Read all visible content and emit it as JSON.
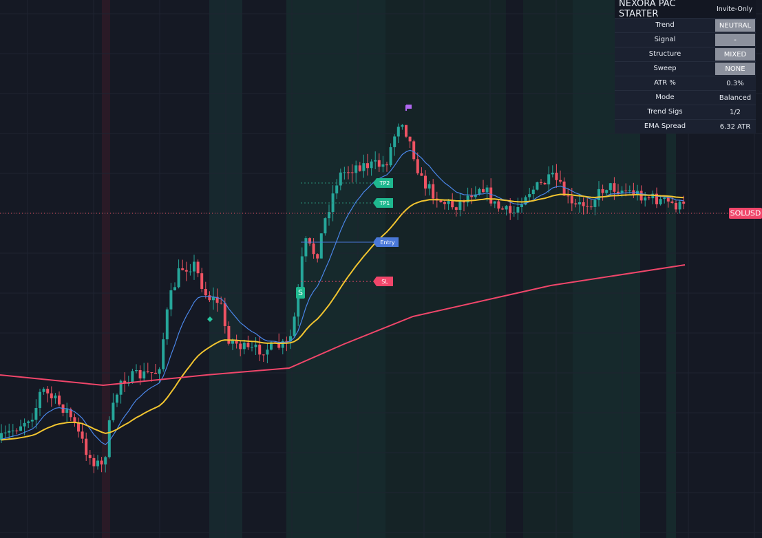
{
  "panel": {
    "title": "NEXORA PAC STARTER",
    "subtitle": "Invite-Only",
    "rows": [
      [
        "Trend",
        "NEUTRAL"
      ],
      [
        "Signal",
        "-"
      ],
      [
        "Structure",
        "MIXED"
      ],
      [
        "Sweep",
        "NONE"
      ],
      [
        "ATR %",
        "0.3%"
      ],
      [
        "Mode",
        "Balanced"
      ],
      [
        "Trend Sigs",
        "1/2"
      ],
      [
        "EMA Spread",
        "6.32 ATR"
      ]
    ]
  },
  "markers": {
    "tp2": "TP2",
    "tp1": "TP1",
    "entry": "Entry",
    "sl": "SL",
    "signal": "S",
    "symbol": "SOLUSD"
  }
}
